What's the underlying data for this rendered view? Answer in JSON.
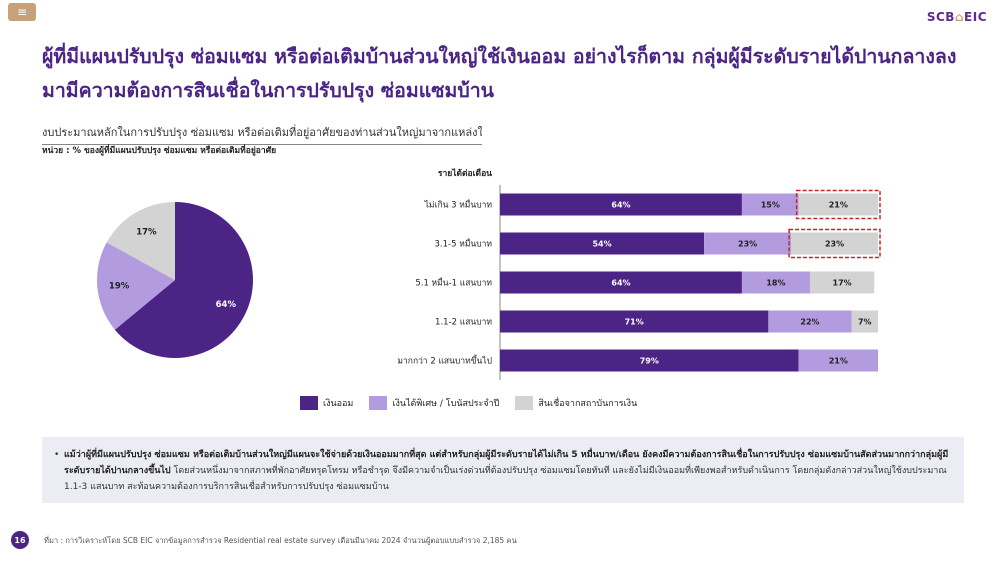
{
  "header": {
    "menu_icon": "menu-icon",
    "logo_main": "SCB",
    "logo_accent": "EIC"
  },
  "title": "ผู้ที่มีแผนปรับปรุง ซ่อมแซม หรือต่อเติมบ้านส่วนใหญ่ใช้เงินออม อย่างไรก็ตาม กลุ่มผู้มีระดับรายได้ปานกลางลงมามีความต้องการสินเชื่อในการปรับปรุง ซ่อมแซมบ้าน",
  "subtitle": "งบประมาณหลักในการปรับปรุง ซ่อมแซม หรือต่อเติมที่อยู่อาศัยของท่านส่วนใหญ่มาจากแหล่งใด",
  "unit": "หน่วย : % ของผู้ที่มีแผนปรับปรุง ซ่อมแซม หรือต่อเติมที่อยู่อาศัย",
  "colors": {
    "savings": "#4b2486",
    "bonus": "#b39be0",
    "loan": "#d3d3d3",
    "highlight": "#c0282d"
  },
  "chart_data": [
    {
      "type": "pie",
      "labels": [
        "เงินออม",
        "เงินได้พิเศษ / โบนัสประจำปี",
        "สินเชื่อจากสถาบันการเงิน"
      ],
      "values": [
        64,
        19,
        17
      ],
      "value_labels": [
        "64%",
        "19%",
        "17%"
      ]
    },
    {
      "type": "bar",
      "stacked": true,
      "orientation": "horizontal",
      "category_title": "รายได้ต่อเดือน",
      "categories": [
        "ไม่เกิน 3 หมื่นบาท",
        "3.1-5 หมื่นบาท",
        "5.1 หมื่น-1 แสนบาท",
        "1.1-2 แสนบาท",
        "มากกว่า 2 แสนบาทขึ้นไป"
      ],
      "series": [
        {
          "name": "เงินออม",
          "values": [
            64,
            54,
            64,
            71,
            79
          ]
        },
        {
          "name": "เงินได้พิเศษ / โบนัสประจำปี",
          "values": [
            15,
            23,
            18,
            22,
            21
          ]
        },
        {
          "name": "สินเชื่อจากสถาบันการเงิน",
          "values": [
            21,
            23,
            17,
            7,
            0
          ]
        }
      ],
      "highlighted": [
        {
          "category": "ไม่เกิน 3 หมื่นบาท",
          "series": "สินเชื่อจากสถาบันการเงิน"
        },
        {
          "category": "3.1-5 หมื่นบาท",
          "series": "สินเชื่อจากสถาบันการเงิน"
        }
      ],
      "xlim": [
        0,
        100
      ]
    }
  ],
  "legend": [
    "เงินออม",
    "เงินได้พิเศษ / โบนัสประจำปี",
    "สินเชื่อจากสถาบันการเงิน"
  ],
  "note": {
    "bullet": "•",
    "bold": "แม้ว่าผู้ที่มีแผนปรับปรุง ซ่อมแซม หรือต่อเติมบ้านส่วนใหญ่มีแผนจะใช้จ่ายด้วยเงินออมมากที่สุด แต่สำหรับกลุ่มผู้มีระดับรายได้ไม่เกิน 5 หมื่นบาท/เดือน ยังคงมีความต้องการสินเชื่อในการปรับปรุง ซ่อมแซมบ้านสัดส่วนมากกว่ากลุ่มผู้มีระดับรายได้ปานกลางขึ้นไป",
    "text": " โดยส่วนหนึ่งมาจากสภาพที่พักอาศัยทรุดโทรม หรือชำรุด จึงมีความจำเป็นเร่งด่วนที่ต้องปรับปรุง ซ่อมแซมโดยทันที และยังไม่มีเงินออมที่เพียงพอสำหรับดำเนินการ โดยกลุ่มดังกล่าวส่วนใหญ่ใช้งบประมาณ 1.1-3 แสนบาท สะท้อนความต้องการบริการสินเชื่อสำหรับการปรับปรุง ซ่อมแซมบ้าน"
  },
  "footer": {
    "page": "16",
    "source": "ที่มา : การวิเคราะห์โดย SCB EIC จากข้อมูลการสำรวจ Residential real estate survey เดือนมีนาคม 2024 จำนวนผู้ตอบแบบสำรวจ 2,185 คน"
  }
}
